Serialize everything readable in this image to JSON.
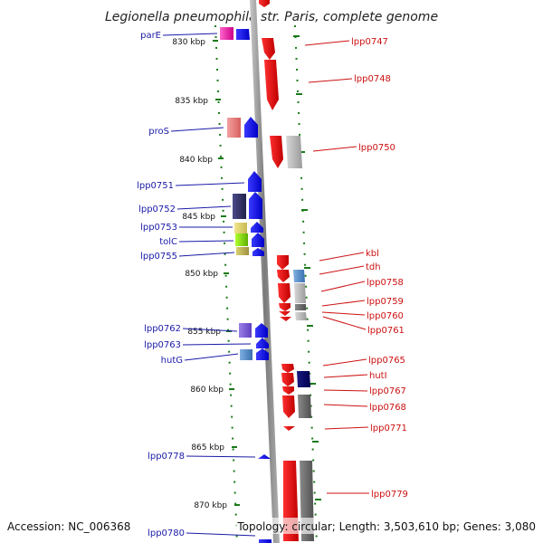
{
  "title": "Legionella pneumophila str. Paris, complete genome",
  "footer": {
    "accession": "Accession: NC_006368",
    "summary": "Topology: circular; Length: 3,503,610 bp; Genes: 3,080"
  },
  "ticks": [
    "830 kbp",
    "835 kbp",
    "840 kbp",
    "845 kbp",
    "850 kbp",
    "855 kbp",
    "860 kbp",
    "865 kbp",
    "870 kbp"
  ],
  "genes_left": [
    {
      "label": "parE",
      "color": "#2020e6"
    },
    {
      "label": "proS",
      "color": "#2020e6"
    },
    {
      "label": "lpp0751",
      "color": "#2020e6"
    },
    {
      "label": "lpp0752",
      "color": "#2020e6"
    },
    {
      "label": "lpp0753",
      "color": "#2020e6"
    },
    {
      "label": "tolC",
      "color": "#2020e6"
    },
    {
      "label": "lpp0755",
      "color": "#2020e6"
    },
    {
      "label": "lpp0762",
      "color": "#2020e6"
    },
    {
      "label": "lpp0763",
      "color": "#2020e6"
    },
    {
      "label": "hutG",
      "color": "#2020e6"
    },
    {
      "label": "lpp0778",
      "color": "#2020e6"
    },
    {
      "label": "lpp0780",
      "color": "#2020e6"
    }
  ],
  "genes_right": [
    {
      "label": "lpp0747",
      "color": "#e61010"
    },
    {
      "label": "lpp0748",
      "color": "#e61010"
    },
    {
      "label": "lpp0750",
      "color": "#e61010"
    },
    {
      "label": "kbl",
      "color": "#e61010"
    },
    {
      "label": "tdh",
      "color": "#e61010"
    },
    {
      "label": "lpp0758",
      "color": "#e61010"
    },
    {
      "label": "lpp0759",
      "color": "#e61010"
    },
    {
      "label": "lpp0760",
      "color": "#e61010"
    },
    {
      "label": "lpp0761",
      "color": "#e61010"
    },
    {
      "label": "lpp0765",
      "color": "#e61010"
    },
    {
      "label": "hutI",
      "color": "#e61010"
    },
    {
      "label": "lpp0767",
      "color": "#e61010"
    },
    {
      "label": "lpp0768",
      "color": "#e61010"
    },
    {
      "label": "lpp0771",
      "color": "#e61010"
    },
    {
      "label": "lpp0779",
      "color": "#e61010"
    }
  ],
  "colors": {
    "forward": "#2020e6",
    "reverse": "#e61010",
    "backbone": "#8c8c8c",
    "tickmarks": "#1a7a1a"
  }
}
